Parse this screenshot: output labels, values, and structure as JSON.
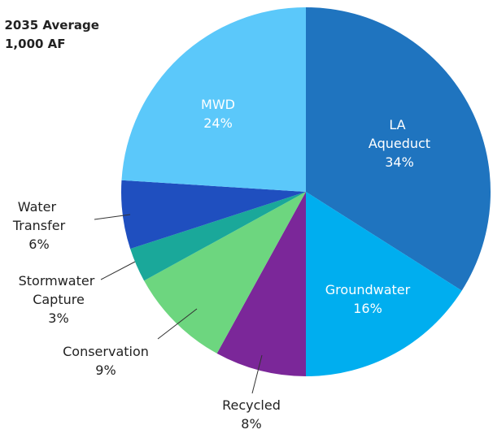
{
  "chart_data": {
    "type": "pie",
    "title": "- 2035 Average",
    "subtitle": "1,000 AF",
    "categories": [
      "LA Aqueduct",
      "Groundwater",
      "Recycled",
      "Conservation",
      "Stormwater Capture",
      "Water Transfer",
      "MWD"
    ],
    "values": [
      34,
      16,
      8,
      9,
      3,
      6,
      24
    ],
    "value_labels": [
      "34%",
      "16%",
      "8%",
      "9%",
      "3%",
      "6%",
      "24%"
    ],
    "colors": [
      "#1f74bf",
      "#00aeef",
      "#7b2799",
      "#6dd67f",
      "#1aa89a",
      "#1f4fbf",
      "#5bc8fa"
    ]
  }
}
